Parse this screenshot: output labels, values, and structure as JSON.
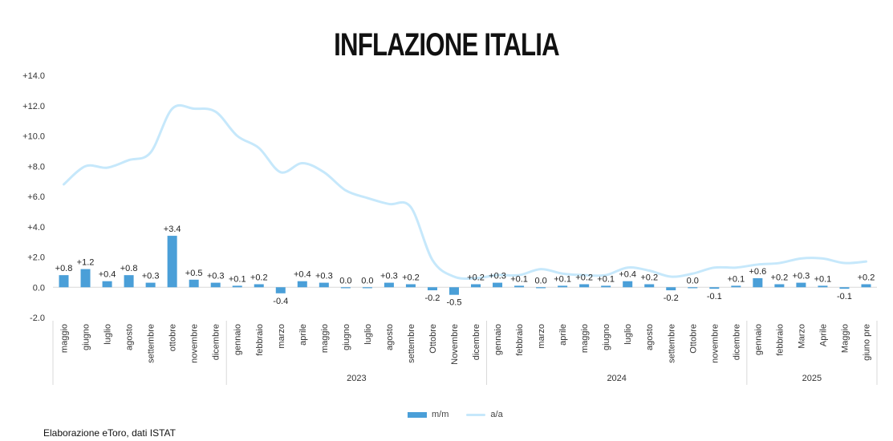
{
  "chart_data": {
    "type": "bar",
    "title": "INFLAZIONE ITALIA",
    "categories": [
      "maggio",
      "giugno",
      "luglio",
      "agosto",
      "settembre",
      "ottobre",
      "novembre",
      "dicembre",
      "gennaio",
      "febbraio",
      "marzo",
      "aprile",
      "maggio",
      "giugno",
      "luglio",
      "agosto",
      "settembre",
      "Ottobre",
      "Novembre",
      "dicembre",
      "gennaio",
      "febbraio",
      "marzo",
      "aprile",
      "maggio",
      "giugno",
      "luglio",
      "agosto",
      "settembre",
      "Ottobre",
      "novembre",
      "dicembre",
      "gennaio",
      "febbraio",
      "Marzo",
      "Aprile",
      "Maggio",
      "giuno pre"
    ],
    "year_groups": [
      {
        "label": "",
        "start": 0,
        "end": 7
      },
      {
        "label": "2023",
        "start": 8,
        "end": 19
      },
      {
        "label": "2024",
        "start": 20,
        "end": 31
      },
      {
        "label": "2025",
        "start": 32,
        "end": 37
      }
    ],
    "series": [
      {
        "name": "m/m",
        "type": "bar",
        "color": "#4a9fd8",
        "values": [
          0.8,
          1.2,
          0.4,
          0.8,
          0.3,
          3.4,
          0.5,
          0.3,
          0.1,
          0.2,
          -0.4,
          0.4,
          0.3,
          0.0,
          0.0,
          0.3,
          0.2,
          -0.2,
          -0.5,
          0.2,
          0.3,
          0.1,
          0.0,
          0.1,
          0.2,
          0.1,
          0.4,
          0.2,
          -0.2,
          0.0,
          -0.1,
          0.1,
          0.6,
          0.2,
          0.3,
          0.1,
          -0.1,
          0.2
        ],
        "labels": [
          "+0.8",
          "+1.2",
          "+0.4",
          "+0.8",
          "+0.3",
          "+3.4",
          "+0.5",
          "+0.3",
          "+0.1",
          "+0.2",
          "-0.4",
          "+0.4",
          "+0.3",
          "0.0",
          "0.0",
          "+0.3",
          "+0.2",
          "-0.2",
          "-0.5",
          "+0.2",
          "+0.3",
          "+0.1",
          "0.0",
          "+0.1",
          "+0.2",
          "+0.1",
          "+0.4",
          "+0.2",
          "-0.2",
          "0.0",
          "-0.1",
          "+0.1",
          "+0.6",
          "+0.2",
          "+0.3",
          "+0.1",
          "-0.1",
          "+0.2"
        ]
      },
      {
        "name": "a/a",
        "type": "line",
        "color": "#c6e8fb",
        "values": [
          6.8,
          8.0,
          7.9,
          8.4,
          8.9,
          11.8,
          11.8,
          11.6,
          10.0,
          9.2,
          7.6,
          8.2,
          7.6,
          6.4,
          5.9,
          5.5,
          5.3,
          1.8,
          0.7,
          0.6,
          0.8,
          0.8,
          1.2,
          0.9,
          0.8,
          0.8,
          1.3,
          1.1,
          0.7,
          0.9,
          1.3,
          1.3,
          1.5,
          1.6,
          1.9,
          1.9,
          1.6,
          1.7
        ]
      }
    ],
    "ylim": [
      -2.0,
      14.0
    ],
    "yticks": [
      "-2.0",
      "0.0",
      "+2.0",
      "+4.0",
      "+6.0",
      "+8.0",
      "+10.0",
      "+12.0",
      "+14.0"
    ],
    "legend_position": "bottom-center",
    "grid": false
  },
  "source_note": "Elaborazione eToro, dati ISTAT"
}
